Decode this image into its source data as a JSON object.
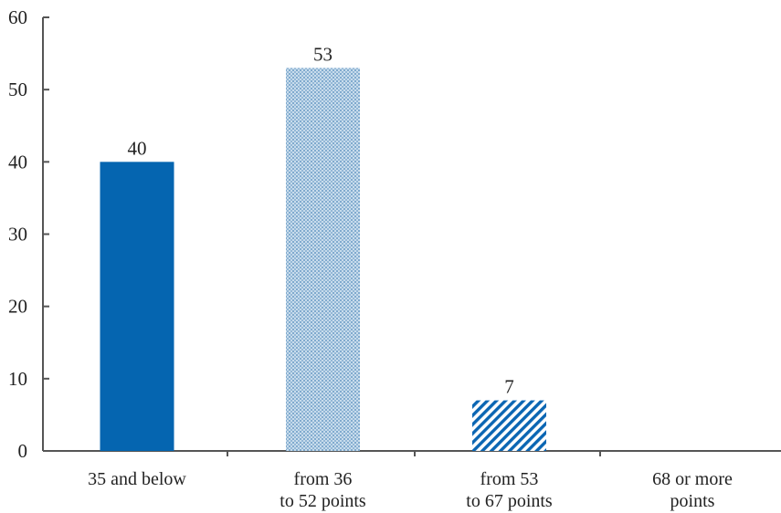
{
  "chart_data": {
    "type": "bar",
    "categories": [
      [
        "35 and below"
      ],
      [
        "from 36",
        "to 52 points"
      ],
      [
        "from 53",
        "to 67 points"
      ],
      [
        "68 or more",
        "points"
      ]
    ],
    "values": [
      40,
      53,
      7,
      0
    ],
    "value_labels": [
      "40",
      "53",
      "7",
      ""
    ],
    "bar_styles": [
      "solid",
      "dotted",
      "hatched",
      "none"
    ],
    "ylim": [
      0,
      60
    ],
    "yticks": [
      0,
      10,
      20,
      30,
      40,
      50,
      60
    ],
    "grid": false,
    "legend": "none",
    "xlabel": "",
    "ylabel": "",
    "title": ""
  },
  "colors": {
    "primary": "#0565b0",
    "dotted_fill": "#c8dcec",
    "dotted_dot": "#4c86b8",
    "hatch_line": "#0b66b3",
    "axis": "#555555"
  }
}
